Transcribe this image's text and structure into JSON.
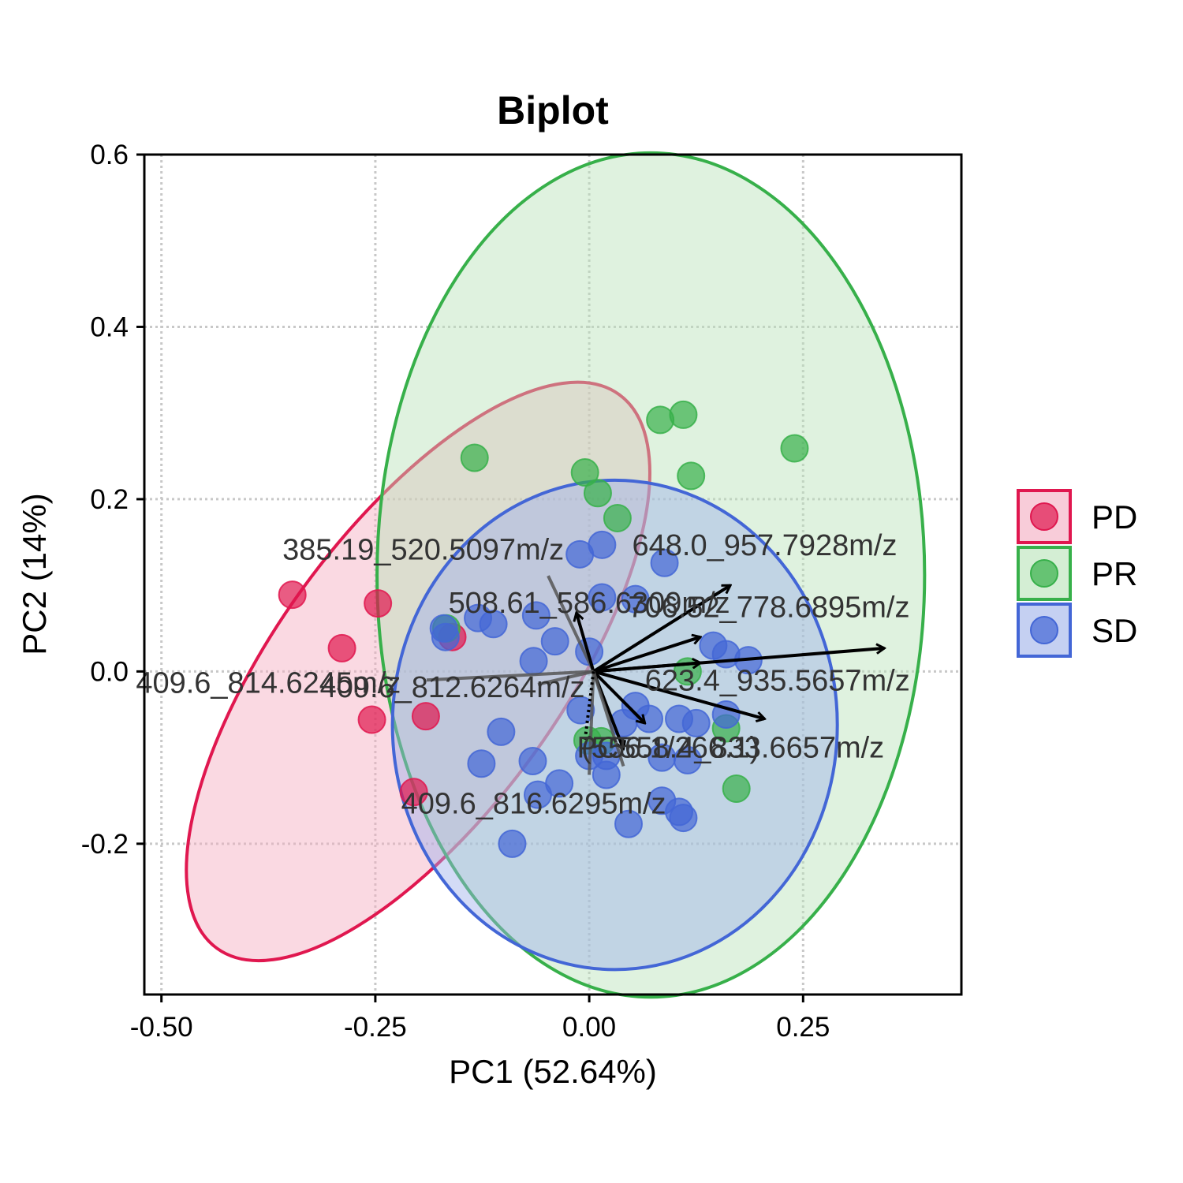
{
  "chart_data": {
    "type": "scatter",
    "title": "Biplot",
    "xlabel": "PC1 (52.64%)",
    "ylabel": "PC2 (14%)",
    "xlim": [
      -0.52,
      0.435
    ],
    "ylim": [
      -0.375,
      0.6
    ],
    "xticks": [
      -0.5,
      -0.25,
      0.0,
      0.25
    ],
    "xtick_labels": [
      "-0.50",
      "-0.25",
      "0.00",
      "0.25"
    ],
    "yticks": [
      -0.2,
      0.0,
      0.2,
      0.4,
      0.6
    ],
    "ytick_labels": [
      "-0.2",
      "0.0",
      "0.2",
      "0.4",
      "0.6"
    ],
    "grid": true,
    "legend": "right",
    "series": [
      {
        "name": "PD",
        "color": "#e0174f",
        "fill": "#f4aabf",
        "points": [
          [
            -0.347,
            0.089
          ],
          [
            -0.247,
            0.079
          ],
          [
            -0.289,
            0.027
          ],
          [
            -0.254,
            -0.056
          ],
          [
            -0.191,
            -0.052
          ],
          [
            -0.16,
            0.04
          ],
          [
            -0.205,
            -0.14
          ]
        ],
        "ellipse": {
          "cx": -0.2,
          "cy": 0.0,
          "rx": 0.4,
          "ry": 0.165,
          "angle": -54
        }
      },
      {
        "name": "PR",
        "color": "#37b04a",
        "fill": "#b8e3b8",
        "points": [
          [
            -0.134,
            0.248
          ],
          [
            0.083,
            0.292
          ],
          [
            0.11,
            0.298
          ],
          [
            0.24,
            0.259
          ],
          [
            0.119,
            0.227
          ],
          [
            -0.005,
            0.231
          ],
          [
            0.01,
            0.207
          ],
          [
            0.033,
            0.178
          ],
          [
            0.172,
            -0.136
          ],
          [
            0.16,
            -0.066
          ],
          [
            0.115,
            0.0
          ],
          [
            -0.167,
            0.05
          ],
          [
            -0.002,
            -0.08
          ],
          [
            0.014,
            -0.081
          ]
        ],
        "ellipse": {
          "cx": 0.072,
          "cy": 0.112,
          "rx": 0.32,
          "ry": 0.49,
          "angle": 0
        }
      },
      {
        "name": "SD",
        "color": "#4366d6",
        "fill": "#9eb0ea",
        "points": [
          [
            -0.011,
            0.136
          ],
          [
            0.015,
            0.147
          ],
          [
            0.088,
            0.126
          ],
          [
            0.015,
            0.086
          ],
          [
            0.054,
            0.084
          ],
          [
            -0.062,
            0.065
          ],
          [
            -0.13,
            0.062
          ],
          [
            -0.112,
            0.055
          ],
          [
            -0.04,
            0.035
          ],
          [
            -0.065,
            0.012
          ],
          [
            0.0,
            0.023
          ],
          [
            0.145,
            0.03
          ],
          [
            0.16,
            0.02
          ],
          [
            0.186,
            0.013
          ],
          [
            -0.168,
            0.04
          ],
          [
            -0.17,
            0.05
          ],
          [
            0.054,
            -0.04
          ],
          [
            0.07,
            -0.055
          ],
          [
            0.105,
            -0.055
          ],
          [
            0.16,
            -0.05
          ],
          [
            0.125,
            -0.06
          ],
          [
            -0.103,
            -0.07
          ],
          [
            0.0,
            -0.098
          ],
          [
            0.02,
            -0.098
          ],
          [
            0.085,
            -0.1
          ],
          [
            0.115,
            -0.103
          ],
          [
            -0.126,
            -0.107
          ],
          [
            -0.066,
            -0.104
          ],
          [
            0.02,
            -0.12
          ],
          [
            -0.035,
            -0.13
          ],
          [
            -0.06,
            -0.143
          ],
          [
            0.085,
            -0.15
          ],
          [
            0.105,
            -0.163
          ],
          [
            0.11,
            -0.17
          ],
          [
            0.046,
            -0.177
          ],
          [
            -0.09,
            -0.2
          ],
          [
            0.04,
            -0.06
          ],
          [
            -0.01,
            -0.045
          ]
        ],
        "ellipse": {
          "cx": 0.03,
          "cy": -0.062,
          "rx": 0.26,
          "ry": 0.284,
          "angle": 0
        }
      }
    ],
    "loadings": [
      {
        "label": "385.19_520.5097m/z",
        "x": -0.048,
        "y": 0.111,
        "style": "gray",
        "label_x": -0.194,
        "label_y": 0.13
      },
      {
        "label": "648.0_957.7928m/z",
        "x": 0.165,
        "y": 0.1,
        "style": "arrow",
        "label_x": 0.205,
        "label_y": 0.135
      },
      {
        "label": "508.61_586.6309m/z",
        "x": -0.015,
        "y": 0.068,
        "style": "arrow",
        "label_x": 0.0,
        "label_y": 0.068
      },
      {
        "label": "706.52_778.6895m/z",
        "x": 0.13,
        "y": 0.04,
        "style": "arrow",
        "label_x": 0.21,
        "label_y": 0.063
      },
      {
        "label": "",
        "x": 0.345,
        "y": 0.027,
        "style": "arrow"
      },
      {
        "label": "",
        "x": 0.13,
        "y": 0.01,
        "style": "arrow"
      },
      {
        "label": "623.4_935.5657m/z",
        "x": 0.205,
        "y": -0.055,
        "style": "arrow",
        "label_x": 0.22,
        "label_y": -0.022
      },
      {
        "label": "409.6_814.6245m/z",
        "x": -0.19,
        "y": -0.01,
        "style": "gray",
        "label_x": -0.375,
        "label_y": -0.025
      },
      {
        "label": "409.6_812.6264m/z",
        "x": -0.06,
        "y": -0.015,
        "style": "gray",
        "label_x": -0.16,
        "label_y": -0.03
      },
      {
        "label": "PC",
        "x": 0.065,
        "y": -0.06,
        "style": "arrow",
        "label_x": 0.01,
        "label_y": -0.1
      },
      {
        "label": "558.4_833.6657m/z",
        "x": 0.04,
        "y": -0.09,
        "style": "arrow",
        "label_x": 0.19,
        "label_y": -0.1
      },
      {
        "label": "(556.1/266.1)",
        "x": 0.04,
        "y": -0.11,
        "style": "gray",
        "label_x": 0.095,
        "label_y": -0.1
      },
      {
        "label": "409.6_816.6295m/z",
        "x": 0.0,
        "y": -0.12,
        "style": "gray",
        "label_x": -0.065,
        "label_y": -0.165
      },
      {
        "label": "",
        "x": -0.005,
        "y": -0.08,
        "style": "dotted"
      }
    ]
  }
}
